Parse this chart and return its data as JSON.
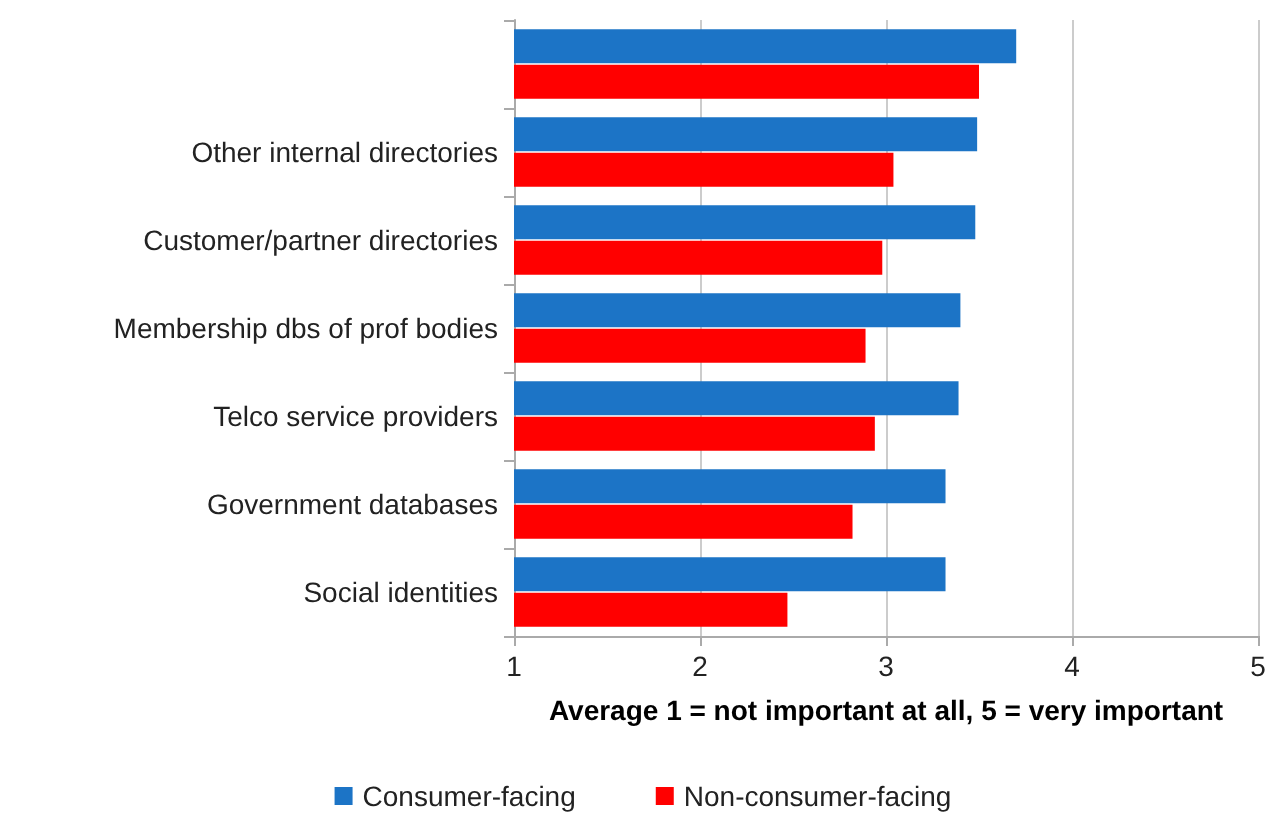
{
  "chart_data": {
    "type": "bar",
    "orientation": "horizontal",
    "xlabel": "Average 1 = not important at all, 5 = very important",
    "categories": [
      null,
      "Other internal directories",
      "Customer/partner directories",
      "Membership dbs of prof bodies",
      "Telco service providers",
      "Government databases",
      "Social identities"
    ],
    "series": [
      {
        "name": "Consumer-facing",
        "color": "#1c74c6",
        "values": [
          3.7,
          3.49,
          3.48,
          3.4,
          3.39,
          3.32,
          3.32
        ]
      },
      {
        "name": "Non-consumer-facing",
        "color": "#ff0000",
        "values": [
          3.5,
          3.04,
          2.98,
          2.89,
          2.94,
          2.82,
          2.47
        ]
      }
    ],
    "xlim": [
      1,
      5
    ],
    "xticks": [
      1,
      2,
      3,
      4,
      5
    ],
    "grid": "x",
    "legend": "bottom"
  }
}
